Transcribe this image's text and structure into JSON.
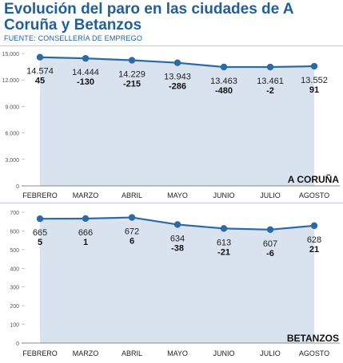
{
  "title": "Evolución del paro en las ciudades de A Coruña y Betanzos",
  "source": "FUENTE: CONSELLERÍA DE EMPREGO",
  "colors": {
    "accent": "#1f5f9c",
    "area": "#d9e3ef",
    "line": "#2c6aa6"
  },
  "chart_data": [
    {
      "type": "area",
      "name": "A CORUÑA",
      "categories": [
        "FEBRERO",
        "MARZO",
        "ABRIL",
        "MAYO",
        "JUNIO",
        "JULIO",
        "AGOSTO"
      ],
      "values": [
        14574,
        14444,
        14229,
        13943,
        13463,
        13461,
        13552
      ],
      "value_labels": [
        "14.574",
        "14.444",
        "14.229",
        "13.943",
        "13.463",
        "13.461",
        "13.552"
      ],
      "changes": [
        "45",
        "-130",
        "-215",
        "-286",
        "-480",
        "-2",
        "91"
      ],
      "yticks": [
        "0",
        "3.000",
        "6.000",
        "9.000",
        "12.000",
        "15.000"
      ],
      "ylim": [
        0,
        15000
      ],
      "grid": false
    },
    {
      "type": "area",
      "name": "BETANZOS",
      "categories": [
        "FEBRERO",
        "MARZO",
        "ABRIL",
        "MAYO",
        "JUNIO",
        "JULIO",
        "AGOSTO"
      ],
      "values": [
        665,
        666,
        672,
        634,
        613,
        607,
        628
      ],
      "value_labels": [
        "665",
        "666",
        "672",
        "634",
        "613",
        "607",
        "628"
      ],
      "changes": [
        "5",
        "1",
        "6",
        "-38",
        "-21",
        "-6",
        "21"
      ],
      "yticks": [
        "0",
        "100",
        "200",
        "300",
        "400",
        "500",
        "600",
        "700"
      ],
      "ylim": [
        0,
        700
      ],
      "grid": false
    }
  ]
}
